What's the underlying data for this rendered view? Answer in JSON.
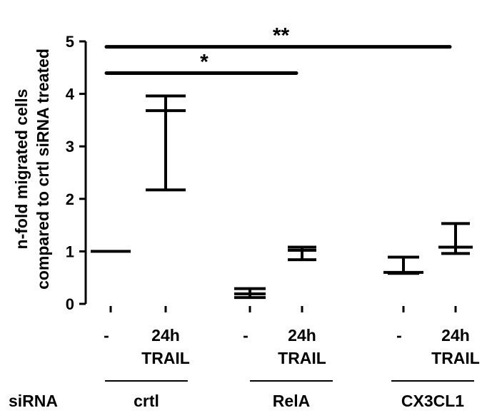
{
  "chart_data": {
    "type": "floating-bar",
    "ylabel_lines": [
      "n-fold migrated cells",
      "compared to crtl siRNA treated"
    ],
    "ylim": [
      0,
      5
    ],
    "yticks": [
      "0",
      "1",
      "2",
      "3",
      "4",
      "5"
    ],
    "groups": [
      {
        "label": "crtl",
        "conditions": [
          {
            "label_lines": [
              "-"
            ],
            "min": 1.0,
            "mean": 1.0,
            "max": 1.0
          },
          {
            "label_lines": [
              "24h",
              "TRAIL"
            ],
            "min": 2.17,
            "mean": 3.68,
            "max": 3.96
          }
        ]
      },
      {
        "label": "RelA",
        "conditions": [
          {
            "label_lines": [
              "-"
            ],
            "min": 0.12,
            "mean": 0.19,
            "max": 0.29
          },
          {
            "label_lines": [
              "24h",
              "TRAIL"
            ],
            "min": 0.84,
            "mean": 1.02,
            "max": 1.08
          }
        ]
      },
      {
        "label": "CX3CL1",
        "conditions": [
          {
            "label_lines": [
              "-"
            ],
            "min": 0.58,
            "mean": 0.6,
            "max": 0.89
          },
          {
            "label_lines": [
              "24h",
              "TRAIL"
            ],
            "min": 0.96,
            "mean": 1.08,
            "max": 1.53
          }
        ]
      }
    ],
    "row_label": "siRNA",
    "significance": [
      {
        "label": "**",
        "from_index": 0,
        "to_index": 5,
        "y": 4.95
      },
      {
        "label": "*",
        "from_index": 0,
        "to_index": 3,
        "y": 4.45
      }
    ]
  }
}
